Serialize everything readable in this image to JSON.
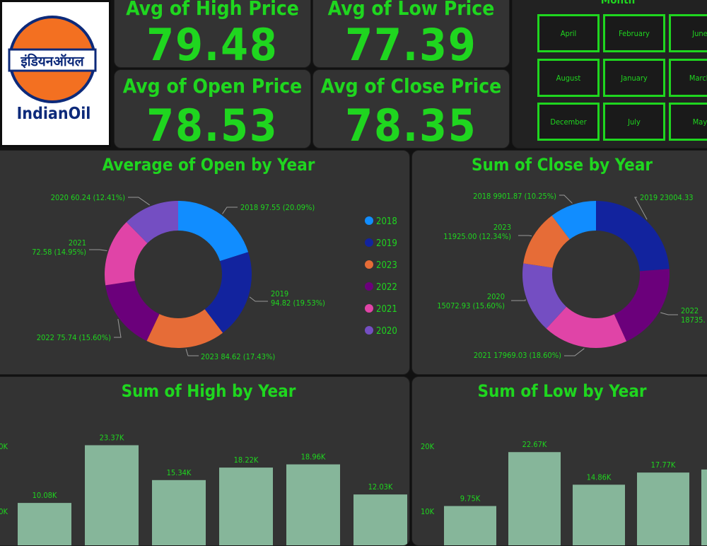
{
  "brand": {
    "logo_devanagari": "इंडियनऑयल",
    "logo_name": "IndianOil"
  },
  "kpis": [
    {
      "title": "Avg of High Price",
      "value": "79.48"
    },
    {
      "title": "Avg of Low Price",
      "value": "77.39"
    },
    {
      "title": "Avg of Open Price",
      "value": "78.53"
    },
    {
      "title": "Avg of Close Price",
      "value": "78.35"
    }
  ],
  "slicer": {
    "title": "Month",
    "items": [
      "April",
      "February",
      "June",
      "August",
      "January",
      "March",
      "December",
      "July",
      "May"
    ]
  },
  "colors": {
    "accent": "#1fd61f",
    "panel": "#333333",
    "bar": "#86b69a",
    "2018": "#118dff",
    "2019": "#12239e",
    "2020": "#744ec2",
    "2021": "#e044a7",
    "2022": "#6b007b",
    "2023": "#e66c37"
  },
  "chart_data": [
    {
      "type": "donut",
      "title": "Average of Open by Year",
      "legend_position": "right",
      "slices": [
        {
          "label": "2018",
          "value": 97.55,
          "percent": "20.09%"
        },
        {
          "label": "2019",
          "value": 94.82,
          "percent": "19.53%"
        },
        {
          "label": "2023",
          "value": 84.62,
          "percent": "17.43%"
        },
        {
          "label": "2022",
          "value": 75.74,
          "percent": "15.60%"
        },
        {
          "label": "2021",
          "value": 72.58,
          "percent": "14.95%"
        },
        {
          "label": "2020",
          "value": 60.24,
          "percent": "12.41%"
        }
      ]
    },
    {
      "type": "donut",
      "title": "Sum of Close by Year",
      "slices": [
        {
          "label": "2019",
          "value": 23004.33,
          "percent": ""
        },
        {
          "label": "2022",
          "value": 18735,
          "percent": ""
        },
        {
          "label": "2021",
          "value": 17969.03,
          "percent": "18.60%"
        },
        {
          "label": "2020",
          "value": 15072.93,
          "percent": "15.60%"
        },
        {
          "label": "2023",
          "value": 11925.0,
          "percent": "12.34%"
        },
        {
          "label": "2018",
          "value": 9901.87,
          "percent": "10.25%"
        }
      ]
    },
    {
      "type": "bar",
      "title": "Sum of High by Year",
      "values": [
        10.08,
        23.37,
        15.34,
        18.22,
        18.96,
        12.03
      ],
      "value_labels": [
        "10.08K",
        "23.37K",
        "15.34K",
        "18.22K",
        "18.96K",
        "12.03K"
      ],
      "yticks": [
        "0K",
        "0K"
      ]
    },
    {
      "type": "bar",
      "title": "Sum of Low by Year",
      "values": [
        9.75,
        22.67,
        14.86,
        17.77,
        18.5
      ],
      "value_labels": [
        "9.75K",
        "22.67K",
        "14.86K",
        "17.77K",
        ""
      ],
      "yticks": [
        "20K",
        "10K"
      ]
    }
  ]
}
